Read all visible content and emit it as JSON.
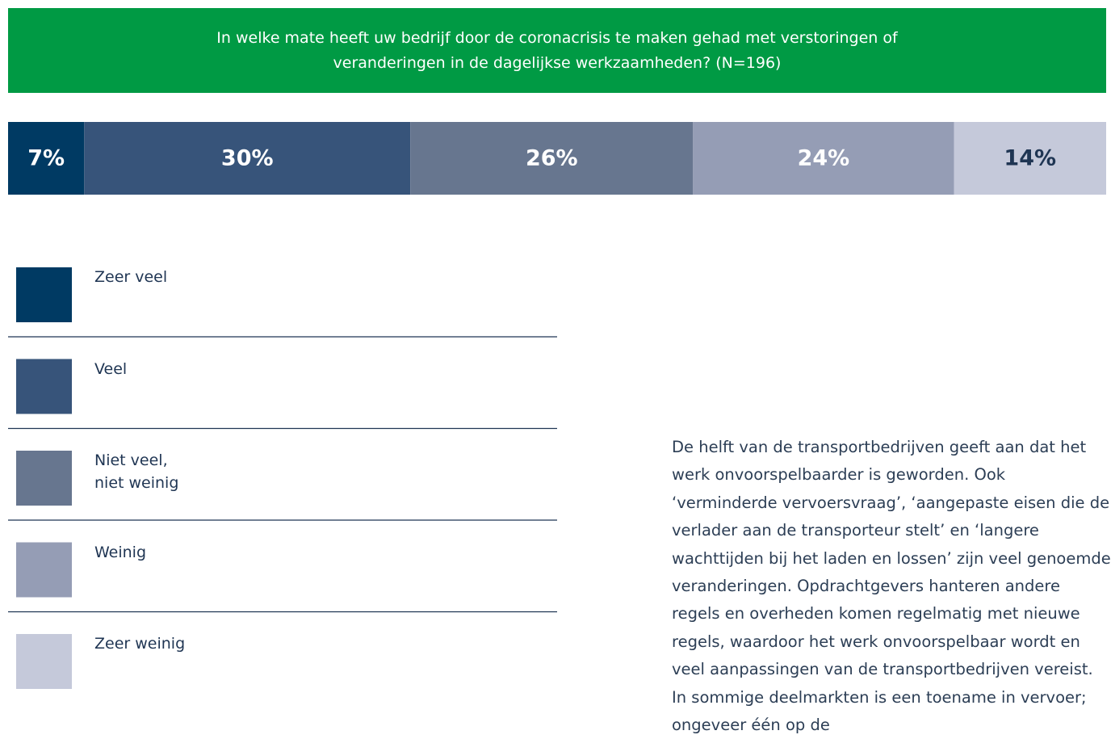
{
  "chart_data": {
    "type": "bar",
    "stacked": true,
    "orientation": "horizontal",
    "title": "In welke mate heeft uw bedrijf door de coronacrisis te maken gehad met verstoringen of veranderingen in de dagelijkse werkzaamheden? (N=196)",
    "series": [
      {
        "name": "Zeer veel",
        "color": "#003a63",
        "values": [
          7
        ],
        "value_labels": [
          "7%"
        ]
      },
      {
        "name": "Veel",
        "color": "#37547a",
        "values": [
          30
        ],
        "value_labels": [
          "30%"
        ]
      },
      {
        "name": "Niet veel,\nniet weinig",
        "color": "#67768f",
        "values": [
          26
        ],
        "value_labels": [
          "26%"
        ]
      },
      {
        "name": "Weinig",
        "color": "#959db5",
        "values": [
          24
        ],
        "value_labels": [
          "24%"
        ]
      },
      {
        "name": "Zeer weinig",
        "color": "#c5c9da",
        "values": [
          14
        ],
        "value_labels": [
          "14%"
        ]
      }
    ],
    "note": "De helft van de transportbedrijven geeft aan dat het werk onvoorspelbaarder is geworden. Ook ‘verminderde vervoersvraag’, ‘aangepaste eisen die de verlader aan de transporteur stelt’ en ‘langere wachttijden bij het laden en lossen’ zijn veel genoemde veranderingen. Opdrachtgevers hanteren andere regels en overheden komen regelmatig met nieuwe regels, waardoor het werk onvoorspelbaar wordt en veel aanpassingen van de transportbedrijven vereist. In sommige deelmarkten is een toename in vervoer; ongeveer één op de"
  }
}
